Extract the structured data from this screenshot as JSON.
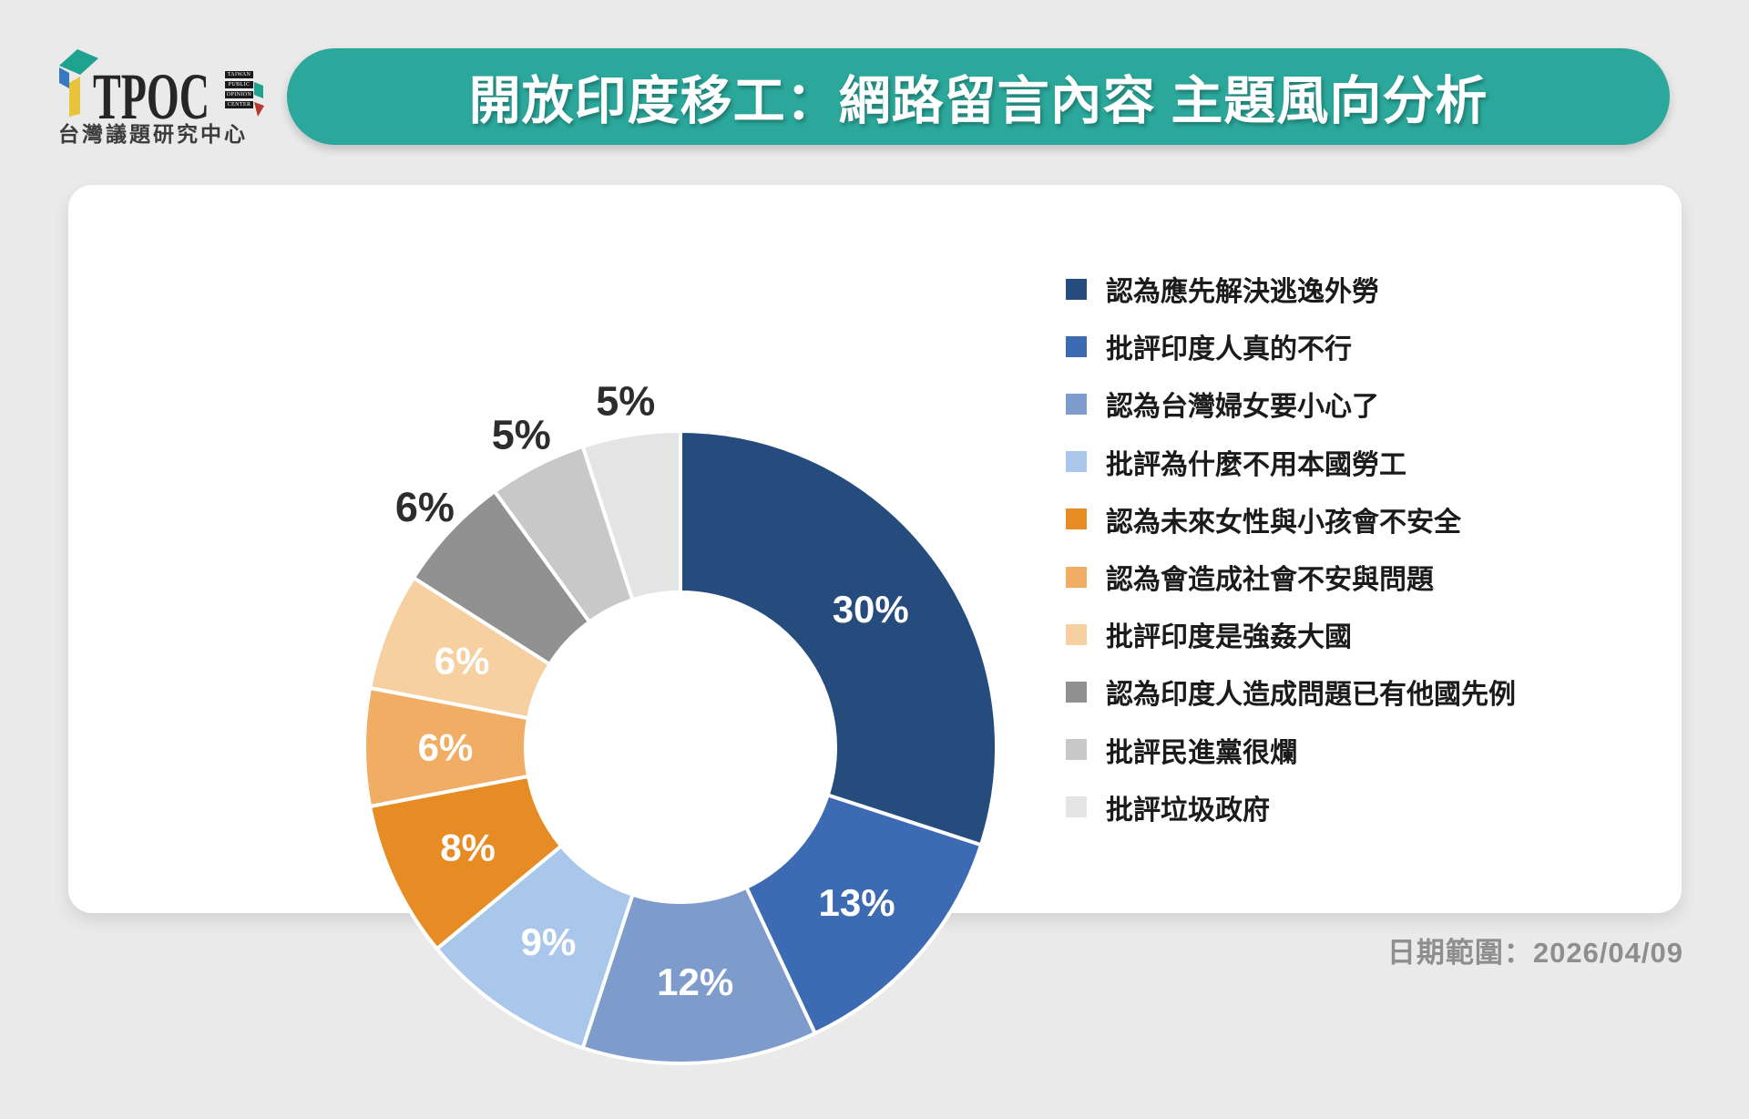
{
  "page": {
    "background": "#EAEAEA"
  },
  "logo": {
    "acronym": "TPOC",
    "stack_words": [
      "TAIWAN",
      "PUBLIC",
      "OPINION",
      "CENTER"
    ],
    "subtitle": "台灣議題研究中心",
    "mark_colors": {
      "teal": "#1FA290",
      "blue": "#3779BC",
      "yellow": "#E8C33C",
      "red": "#B5372E"
    }
  },
  "banner": {
    "title": "開放印度移工：網路留言內容 主題風向分析",
    "background": "#2BA89B"
  },
  "footer": {
    "date_label": "日期範圍：2026/04/09"
  },
  "chart_data": {
    "type": "pie",
    "donut": true,
    "title": "開放印度移工：網路留言內容 主題風向分析",
    "start_angle_deg": 0,
    "direction": "clockwise",
    "legend_position": "right",
    "value_suffix": "%",
    "categories": [
      "認為應先解決逃逸外勞",
      "批評印度人真的不行",
      "認為台灣婦女要小心了",
      "批評為什麼不用本國勞工",
      "認為未來女性與小孩會不安全",
      "認為會造成社會不安與問題",
      "批評印度是強姦大國",
      "認為印度人造成問題已有他國先例",
      "批評民進黨很爛",
      "批評垃圾政府"
    ],
    "values": [
      30,
      13,
      12,
      9,
      8,
      6,
      6,
      6,
      5,
      5
    ],
    "slices": [
      {
        "label": "認為應先解決逃逸外勞",
        "value": 30,
        "color": "#264B7D",
        "label_inside": true
      },
      {
        "label": "批評印度人真的不行",
        "value": 13,
        "color": "#3D6BB3",
        "label_inside": true
      },
      {
        "label": "認為台灣婦女要小心了",
        "value": 12,
        "color": "#7E9CCB",
        "label_inside": true
      },
      {
        "label": "批評為什麼不用本國勞工",
        "value": 9,
        "color": "#A9C7EA",
        "label_inside": true
      },
      {
        "label": "認為未來女性與小孩會不安全",
        "value": 8,
        "color": "#E78B24",
        "label_inside": true
      },
      {
        "label": "認為會造成社會不安與問題",
        "value": 6,
        "color": "#F0AD63",
        "label_inside": true
      },
      {
        "label": "批評印度是強姦大國",
        "value": 6,
        "color": "#F6D0A0",
        "label_inside": true
      },
      {
        "label": "認為印度人造成問題已有他國先例",
        "value": 6,
        "color": "#919191",
        "label_inside": false
      },
      {
        "label": "批評民進黨很爛",
        "value": 5,
        "color": "#C8C8C8",
        "label_inside": false
      },
      {
        "label": "批評垃圾政府",
        "value": 5,
        "color": "#E4E4E4",
        "label_inside": false
      }
    ]
  }
}
